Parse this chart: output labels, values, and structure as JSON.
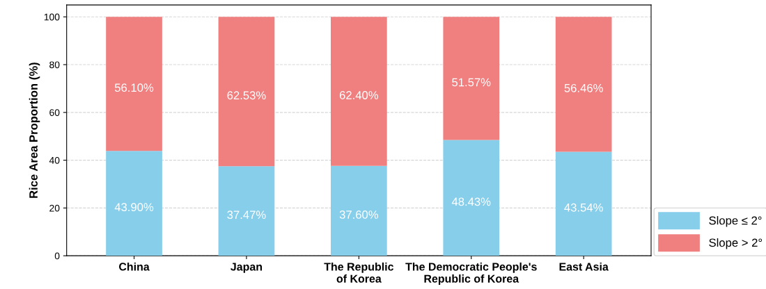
{
  "chart_data": {
    "type": "bar",
    "stacked": true,
    "ylabel": "Rice Area Proportion (%)",
    "categories": [
      "China",
      "Japan",
      "The Republic\nof Korea",
      "The Democratic People's\nRepublic of Korea",
      "East Asia"
    ],
    "series": [
      {
        "name": "Slope ≤ 2°",
        "color": "#87ceeb",
        "values": [
          43.9,
          37.47,
          37.6,
          48.43,
          43.54
        ],
        "value_labels": [
          "43.90%",
          "37.47%",
          "37.60%",
          "48.43%",
          "43.54%"
        ]
      },
      {
        "name": "Slope > 2°",
        "color": "#f08080",
        "values": [
          56.1,
          62.53,
          62.4,
          51.57,
          56.46
        ],
        "value_labels": [
          "56.10%",
          "62.53%",
          "62.40%",
          "51.57%",
          "56.46%"
        ]
      }
    ],
    "ylim": [
      0,
      105
    ],
    "yticks": [
      0,
      20,
      40,
      60,
      80,
      100
    ],
    "grid": "y",
    "legend": "bottom right"
  }
}
